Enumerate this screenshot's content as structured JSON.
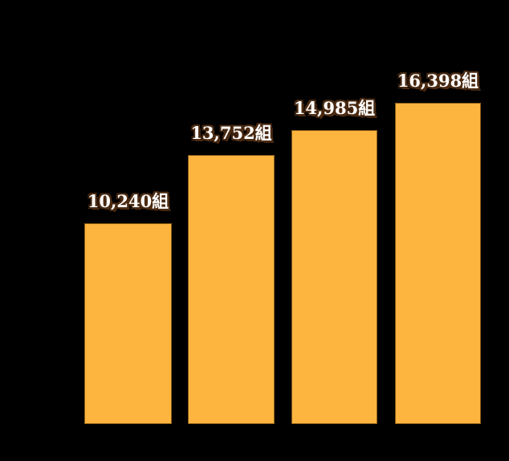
{
  "canvas": {
    "background_color": "#000000"
  },
  "chart_data": {
    "type": "bar",
    "values": [
      10240,
      13752,
      14985,
      16398
    ],
    "data_labels": [
      "10,240組",
      "13,752組",
      "14,985組",
      "16,398組"
    ],
    "unit": "組",
    "bar_fill_color": "#FDB540",
    "bar_border_color": "#8A5C16",
    "label_text_color": "#FFFFFF",
    "label_outline_color": "#4A2A12",
    "background_color": "#000000",
    "ylim": [
      0,
      16398
    ],
    "axes_visible": false,
    "gridlines_visible": false,
    "legend_visible": false,
    "category_labels_visible": false
  }
}
